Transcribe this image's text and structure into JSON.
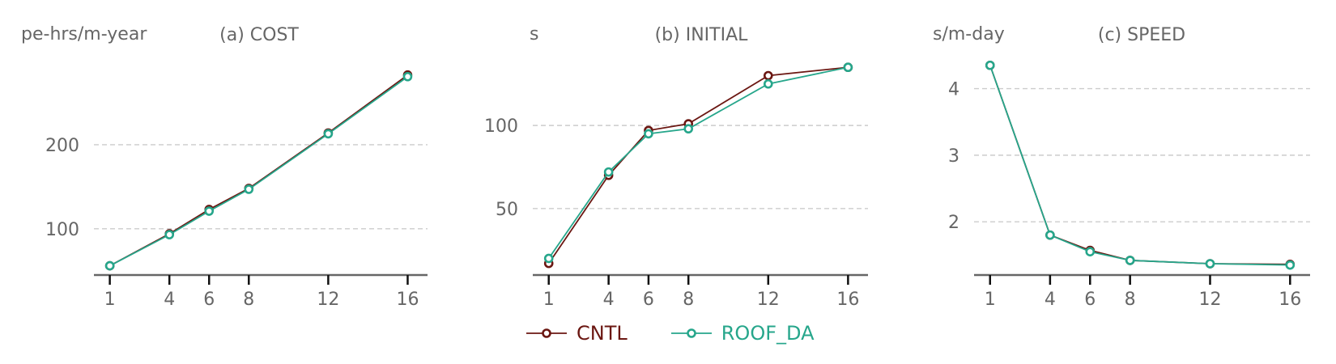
{
  "colors": {
    "text": "#666666",
    "axis": "#666666",
    "grid": "#cccccc",
    "background": "#ffffff"
  },
  "legend": {
    "items": [
      {
        "label": "CNTL",
        "color": "#6b1712"
      },
      {
        "label": "ROOF_DA",
        "color": "#26a68b"
      }
    ]
  },
  "chart_data": [
    {
      "type": "line",
      "title": "(a) COST",
      "ylabel": "pe-hrs/m-year",
      "xlabel": "",
      "x": [
        1,
        4,
        6,
        8,
        12,
        16
      ],
      "xticks": [
        1,
        4,
        6,
        8,
        12,
        16
      ],
      "yticks": [
        100,
        200
      ],
      "xlim": [
        0.2,
        17
      ],
      "ylim": [
        45,
        300
      ],
      "grid": "y-dashed",
      "series": [
        {
          "name": "CNTL",
          "color": "#6b1712",
          "values": [
            56,
            94,
            123,
            148,
            214,
            283
          ]
        },
        {
          "name": "ROOF_DA",
          "color": "#26a68b",
          "values": [
            56,
            93,
            121,
            147,
            213,
            281
          ]
        }
      ]
    },
    {
      "type": "line",
      "title": "(b) INITIAL",
      "ylabel": "s",
      "xlabel": "",
      "x": [
        1,
        4,
        6,
        8,
        12,
        16
      ],
      "xticks": [
        1,
        4,
        6,
        8,
        12,
        16
      ],
      "yticks": [
        50,
        100
      ],
      "xlim": [
        0.2,
        17
      ],
      "ylim": [
        10,
        139
      ],
      "grid": "y-dashed",
      "series": [
        {
          "name": "CNTL",
          "color": "#6b1712",
          "values": [
            17,
            70,
            97,
            101,
            130,
            135
          ]
        },
        {
          "name": "ROOF_DA",
          "color": "#26a68b",
          "values": [
            20,
            72,
            95,
            98,
            125,
            135
          ]
        }
      ]
    },
    {
      "type": "line",
      "title": "(c) SPEED",
      "ylabel": "s/m-day",
      "xlabel": "",
      "x": [
        1,
        4,
        6,
        8,
        12,
        16
      ],
      "xticks": [
        1,
        4,
        6,
        8,
        12,
        16
      ],
      "yticks": [
        2,
        3,
        4
      ],
      "xlim": [
        0.2,
        17
      ],
      "ylim": [
        1.2,
        4.42
      ],
      "grid": "y-dashed",
      "series": [
        {
          "name": "CNTL",
          "color": "#6b1712",
          "values": [
            4.35,
            1.8,
            1.57,
            1.42,
            1.37,
            1.36
          ]
        },
        {
          "name": "ROOF_DA",
          "color": "#26a68b",
          "values": [
            4.35,
            1.8,
            1.55,
            1.42,
            1.37,
            1.35
          ]
        }
      ]
    }
  ]
}
